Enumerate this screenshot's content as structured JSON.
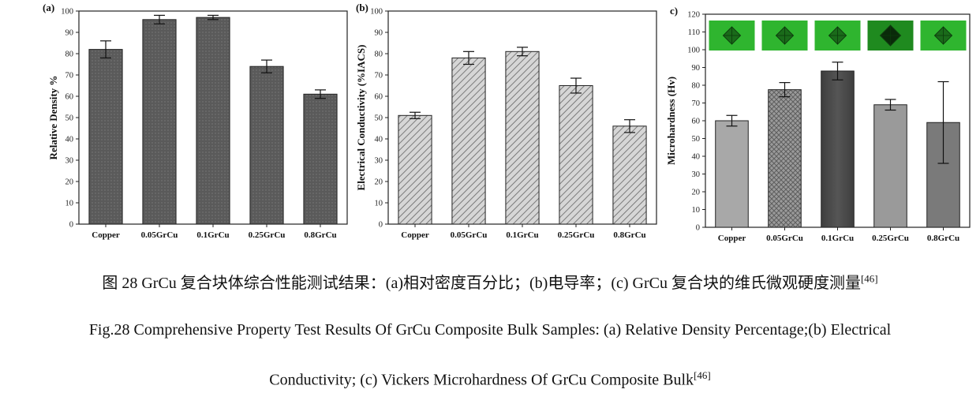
{
  "chart_data": [
    {
      "type": "bar",
      "panel_label": "(a)",
      "categories": [
        "Copper",
        "0.05GrCu",
        "0.1GrCu",
        "0.25GrCu",
        "0.8GrCu"
      ],
      "values": [
        82,
        96,
        97,
        74,
        61
      ],
      "errors": [
        4,
        2,
        1,
        3,
        2
      ],
      "ylabel": "Relative Density %",
      "ylim": [
        0,
        100
      ],
      "yticks": [
        0,
        10,
        20,
        30,
        40,
        50,
        60,
        70,
        80,
        90,
        100
      ],
      "colors": [
        "#5a5a5a",
        "#5a5a5a",
        "#5a5a5a",
        "#5a5a5a",
        "#5a5a5a"
      ],
      "pattern": "dots"
    },
    {
      "type": "bar",
      "panel_label": "(b)",
      "categories": [
        "Copper",
        "0.05GrCu",
        "0.1GrCu",
        "0.25GrCu",
        "0.8GrCu"
      ],
      "values": [
        51,
        78,
        81,
        65,
        46
      ],
      "errors": [
        1.5,
        3,
        2,
        3.5,
        3
      ],
      "ylabel": "Electrical Conductivity (%IACS)",
      "ylim": [
        0,
        100
      ],
      "yticks": [
        0,
        10,
        20,
        30,
        40,
        50,
        60,
        70,
        80,
        90,
        100
      ],
      "colors": [
        "#c8c8c8",
        "#c8c8c8",
        "#c8c8c8",
        "#c8c8c8",
        "#c8c8c8"
      ],
      "pattern": "hatch"
    },
    {
      "type": "bar",
      "panel_label": "c)",
      "categories": [
        "Copper",
        "0.05GrCu",
        "0.1GrCu",
        "0.25GrCu",
        "0.8GrCu"
      ],
      "values": [
        60,
        77.5,
        88,
        69,
        59
      ],
      "errors": [
        3,
        4,
        5,
        3,
        23
      ],
      "ylabel": "Microhardness (Hv)",
      "ylim": [
        0,
        120
      ],
      "yticks": [
        0,
        10,
        20,
        30,
        40,
        50,
        60,
        70,
        80,
        90,
        100,
        110,
        120
      ],
      "colors": [
        "#a8a8a8",
        "#8a8a8a",
        "#4a4a4a",
        "#9a9a9a",
        "#7a7a7a"
      ],
      "patterns": [
        "none",
        "cross",
        "none",
        "none",
        "none"
      ],
      "inset_images": 5,
      "inset_color": "#2fb52f"
    }
  ],
  "caption": {
    "cn": "图 28 GrCu  复合块体综合性能测试结果：(a)相对密度百分比；(b)电导率；(c) GrCu 复合块的维氏微观硬度测量",
    "cn_ref": "[46]",
    "en_line1": "Fig.28 Comprehensive Property Test Results Of GrCu Composite Bulk Samples: (a) Relative Density Percentage;(b) Electrical",
    "en_line2": "Conductivity; (c) Vickers Microhardness Of GrCu Composite Bulk",
    "en_ref": "[46]"
  }
}
